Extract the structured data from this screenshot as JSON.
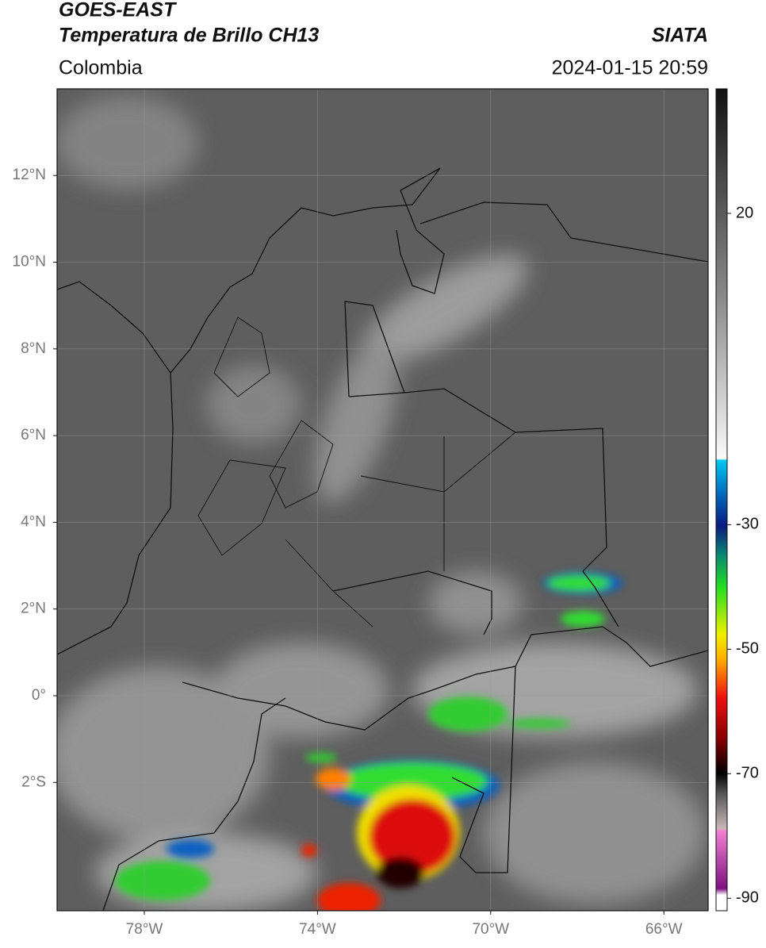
{
  "header": {
    "satellite": "GOES-EAST",
    "product": "Temperatura de Brillo CH13",
    "source": "SIATA",
    "region": "Colombia",
    "datetime": "2024-01-15 20:59"
  },
  "map": {
    "latticks": [
      {
        "value": 12,
        "label": "12°N"
      },
      {
        "value": 10,
        "label": "10°N"
      },
      {
        "value": 8,
        "label": "8°N"
      },
      {
        "value": 6,
        "label": "6°N"
      },
      {
        "value": 4,
        "label": "4°N"
      },
      {
        "value": 2,
        "label": "2°N"
      },
      {
        "value": 0,
        "label": "0°"
      },
      {
        "value": -2,
        "label": "2°S"
      }
    ],
    "lonticks": [
      {
        "value": -78,
        "label": "78°W"
      },
      {
        "value": -74,
        "label": "74°W"
      },
      {
        "value": -70,
        "label": "70°W"
      },
      {
        "value": -66,
        "label": "66°W"
      }
    ]
  },
  "colorbar": {
    "range": [
      -92,
      40
    ],
    "ticks": [
      20,
      -30,
      -50,
      -70,
      -90
    ]
  }
}
